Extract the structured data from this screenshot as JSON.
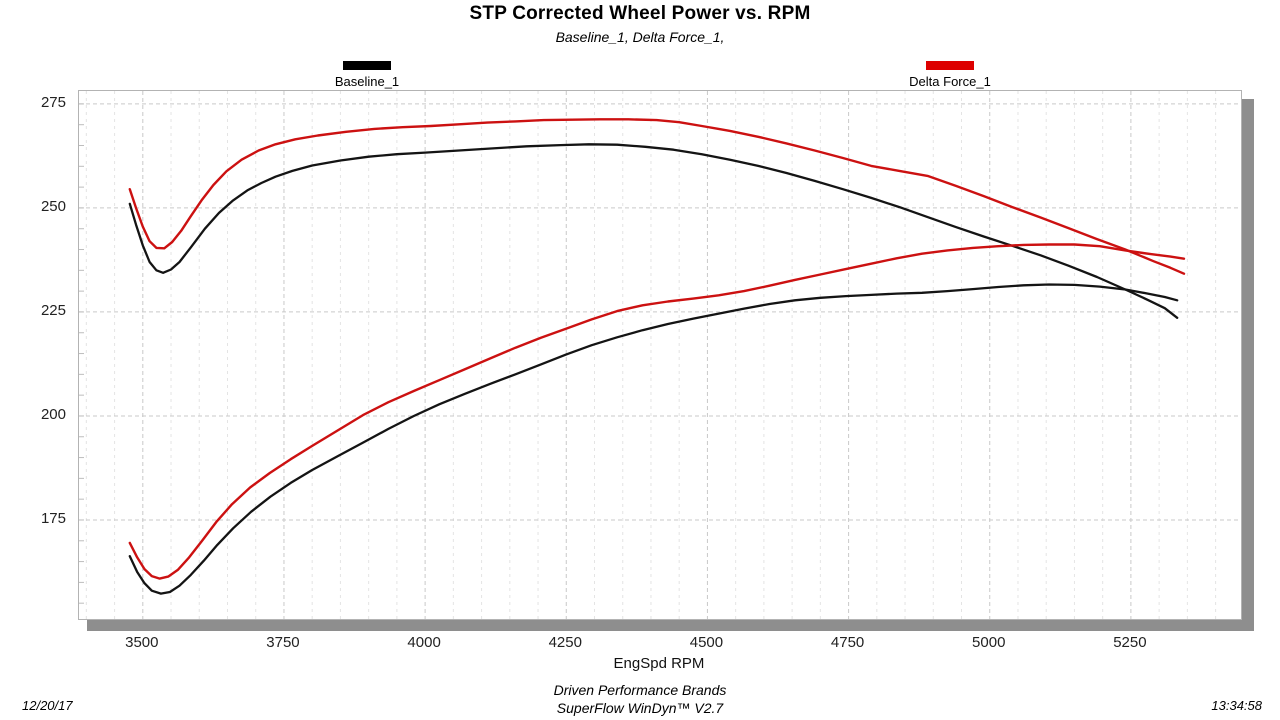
{
  "header": {
    "title": "STP Corrected Wheel Power vs. RPM",
    "subtitle": "Baseline_1, Delta Force_1,"
  },
  "legend": [
    {
      "label": "Baseline_1",
      "color": "#000000"
    },
    {
      "label": "Delta Force_1",
      "color": "#dd0000"
    }
  ],
  "footer": {
    "date": "12/20/17",
    "time": "13:34:58",
    "brand_line1": "Driven Performance Brands",
    "brand_line2": "SuperFlow WinDyn™ V2.7"
  },
  "chart_data": {
    "type": "line",
    "title": "STP Corrected Wheel Power vs. RPM",
    "xlabel": "EngSpd  RPM",
    "ylabel": "",
    "xlim": [
      3387,
      5445
    ],
    "ylim": [
      151.2,
      278.1
    ],
    "x_ticks": [
      3500,
      3750,
      4000,
      4250,
      4500,
      4750,
      5000,
      5250
    ],
    "y_ticks": [
      275,
      250,
      225,
      200,
      175
    ],
    "grid": {
      "x_minor_step": 50,
      "x_major_step": 250,
      "y_minor_step": 5,
      "y_major_step": 25
    },
    "legend_position": "top",
    "series": [
      {
        "name": "Baseline_1",
        "curve": "upper",
        "color": "#141414",
        "width": 2.3,
        "points": [
          [
            3477,
            251
          ],
          [
            3488,
            246
          ],
          [
            3500,
            241
          ],
          [
            3512,
            237
          ],
          [
            3524,
            235
          ],
          [
            3536,
            234.4
          ],
          [
            3550,
            235.2
          ],
          [
            3565,
            237
          ],
          [
            3585,
            240.5
          ],
          [
            3610,
            245
          ],
          [
            3635,
            248.8
          ],
          [
            3660,
            251.8
          ],
          [
            3685,
            254.2
          ],
          [
            3710,
            256
          ],
          [
            3735,
            257.5
          ],
          [
            3765,
            258.9
          ],
          [
            3800,
            260.2
          ],
          [
            3850,
            261.4
          ],
          [
            3900,
            262.3
          ],
          [
            3950,
            262.9
          ],
          [
            4000,
            263.3
          ],
          [
            4060,
            263.8
          ],
          [
            4120,
            264.3
          ],
          [
            4180,
            264.8
          ],
          [
            4240,
            265.1
          ],
          [
            4290,
            265.3
          ],
          [
            4340,
            265.2
          ],
          [
            4390,
            264.7
          ],
          [
            4440,
            264
          ],
          [
            4490,
            262.9
          ],
          [
            4540,
            261.6
          ],
          [
            4590,
            260.1
          ],
          [
            4640,
            258.4
          ],
          [
            4690,
            256.5
          ],
          [
            4740,
            254.5
          ],
          [
            4790,
            252.4
          ],
          [
            4840,
            250.2
          ],
          [
            4890,
            247.8
          ],
          [
            4940,
            245.4
          ],
          [
            4990,
            243.1
          ],
          [
            5040,
            240.9
          ],
          [
            5090,
            238.6
          ],
          [
            5140,
            236.1
          ],
          [
            5190,
            233.4
          ],
          [
            5240,
            230.4
          ],
          [
            5280,
            227.9
          ],
          [
            5310,
            225.9
          ],
          [
            5332,
            223.6
          ]
        ]
      },
      {
        "name": "Delta Force_1",
        "curve": "upper",
        "color": "#cc1111",
        "width": 2.4,
        "points": [
          [
            3477,
            254.5
          ],
          [
            3488,
            250
          ],
          [
            3500,
            245.5
          ],
          [
            3512,
            242
          ],
          [
            3524,
            240.4
          ],
          [
            3538,
            240.3
          ],
          [
            3552,
            241.8
          ],
          [
            3568,
            244.5
          ],
          [
            3585,
            248
          ],
          [
            3605,
            252
          ],
          [
            3625,
            255.5
          ],
          [
            3648,
            258.8
          ],
          [
            3675,
            261.6
          ],
          [
            3705,
            263.8
          ],
          [
            3735,
            265.3
          ],
          [
            3770,
            266.5
          ],
          [
            3810,
            267.4
          ],
          [
            3860,
            268.3
          ],
          [
            3910,
            269
          ],
          [
            3960,
            269.4
          ],
          [
            4010,
            269.7
          ],
          [
            4060,
            270.1
          ],
          [
            4110,
            270.5
          ],
          [
            4160,
            270.8
          ],
          [
            4210,
            271.1
          ],
          [
            4260,
            271.2
          ],
          [
            4310,
            271.3
          ],
          [
            4360,
            271.3
          ],
          [
            4410,
            271.1
          ],
          [
            4450,
            270.6
          ],
          [
            4490,
            269.7
          ],
          [
            4540,
            268.5
          ],
          [
            4590,
            267.1
          ],
          [
            4640,
            265.5
          ],
          [
            4690,
            263.8
          ],
          [
            4740,
            262
          ],
          [
            4790,
            260.1
          ],
          [
            4840,
            258.9
          ],
          [
            4890,
            257.7
          ],
          [
            4940,
            255.3
          ],
          [
            4990,
            252.8
          ],
          [
            5040,
            250.2
          ],
          [
            5090,
            247.7
          ],
          [
            5140,
            245.1
          ],
          [
            5190,
            242.5
          ],
          [
            5240,
            240
          ],
          [
            5290,
            237.2
          ],
          [
            5320,
            235.6
          ],
          [
            5344,
            234.2
          ]
        ]
      },
      {
        "name": "Baseline_1",
        "curve": "lower",
        "color": "#141414",
        "width": 2.3,
        "points": [
          [
            3477,
            166.3
          ],
          [
            3490,
            162.5
          ],
          [
            3503,
            159.8
          ],
          [
            3516,
            158
          ],
          [
            3532,
            157.3
          ],
          [
            3548,
            157.7
          ],
          [
            3565,
            159.2
          ],
          [
            3585,
            161.8
          ],
          [
            3608,
            165.2
          ],
          [
            3632,
            169
          ],
          [
            3660,
            173
          ],
          [
            3692,
            177
          ],
          [
            3726,
            180.6
          ],
          [
            3762,
            183.9
          ],
          [
            3800,
            187
          ],
          [
            3845,
            190.3
          ],
          [
            3890,
            193.6
          ],
          [
            3935,
            196.9
          ],
          [
            3980,
            200
          ],
          [
            4025,
            202.8
          ],
          [
            4070,
            205.3
          ],
          [
            4115,
            207.7
          ],
          [
            4160,
            210
          ],
          [
            4205,
            212.4
          ],
          [
            4250,
            214.8
          ],
          [
            4295,
            217
          ],
          [
            4340,
            218.9
          ],
          [
            4385,
            220.6
          ],
          [
            4430,
            222.1
          ],
          [
            4475,
            223.4
          ],
          [
            4520,
            224.6
          ],
          [
            4565,
            225.8
          ],
          [
            4610,
            226.9
          ],
          [
            4655,
            227.8
          ],
          [
            4700,
            228.4
          ],
          [
            4745,
            228.8
          ],
          [
            4790,
            229.1
          ],
          [
            4835,
            229.4
          ],
          [
            4880,
            229.6
          ],
          [
            4925,
            230
          ],
          [
            4970,
            230.5
          ],
          [
            5015,
            231
          ],
          [
            5060,
            231.4
          ],
          [
            5105,
            231.6
          ],
          [
            5150,
            231.5
          ],
          [
            5195,
            231.1
          ],
          [
            5240,
            230.4
          ],
          [
            5280,
            229.4
          ],
          [
            5310,
            228.6
          ],
          [
            5332,
            227.8
          ]
        ]
      },
      {
        "name": "Delta Force_1",
        "curve": "lower",
        "color": "#cc1111",
        "width": 2.4,
        "points": [
          [
            3477,
            169.5
          ],
          [
            3490,
            166
          ],
          [
            3503,
            163.2
          ],
          [
            3516,
            161.5
          ],
          [
            3530,
            160.9
          ],
          [
            3545,
            161.4
          ],
          [
            3562,
            163
          ],
          [
            3582,
            166
          ],
          [
            3605,
            170
          ],
          [
            3630,
            174.5
          ],
          [
            3658,
            178.8
          ],
          [
            3690,
            182.8
          ],
          [
            3725,
            186.3
          ],
          [
            3762,
            189.6
          ],
          [
            3800,
            192.8
          ],
          [
            3845,
            196.5
          ],
          [
            3890,
            200.2
          ],
          [
            3935,
            203.3
          ],
          [
            3980,
            206
          ],
          [
            4025,
            208.6
          ],
          [
            4070,
            211.2
          ],
          [
            4115,
            213.8
          ],
          [
            4160,
            216.4
          ],
          [
            4205,
            218.8
          ],
          [
            4250,
            221
          ],
          [
            4295,
            223.2
          ],
          [
            4340,
            225.2
          ],
          [
            4385,
            226.6
          ],
          [
            4430,
            227.5
          ],
          [
            4475,
            228.2
          ],
          [
            4520,
            229
          ],
          [
            4565,
            230
          ],
          [
            4610,
            231.3
          ],
          [
            4655,
            232.7
          ],
          [
            4700,
            234
          ],
          [
            4745,
            235.3
          ],
          [
            4790,
            236.6
          ],
          [
            4835,
            237.9
          ],
          [
            4880,
            239
          ],
          [
            4925,
            239.8
          ],
          [
            4970,
            240.4
          ],
          [
            5015,
            240.8
          ],
          [
            5060,
            241.1
          ],
          [
            5105,
            241.2
          ],
          [
            5150,
            241.2
          ],
          [
            5195,
            240.8
          ],
          [
            5240,
            239.8
          ],
          [
            5285,
            238.9
          ],
          [
            5320,
            238.3
          ],
          [
            5344,
            237.8
          ]
        ]
      }
    ]
  }
}
